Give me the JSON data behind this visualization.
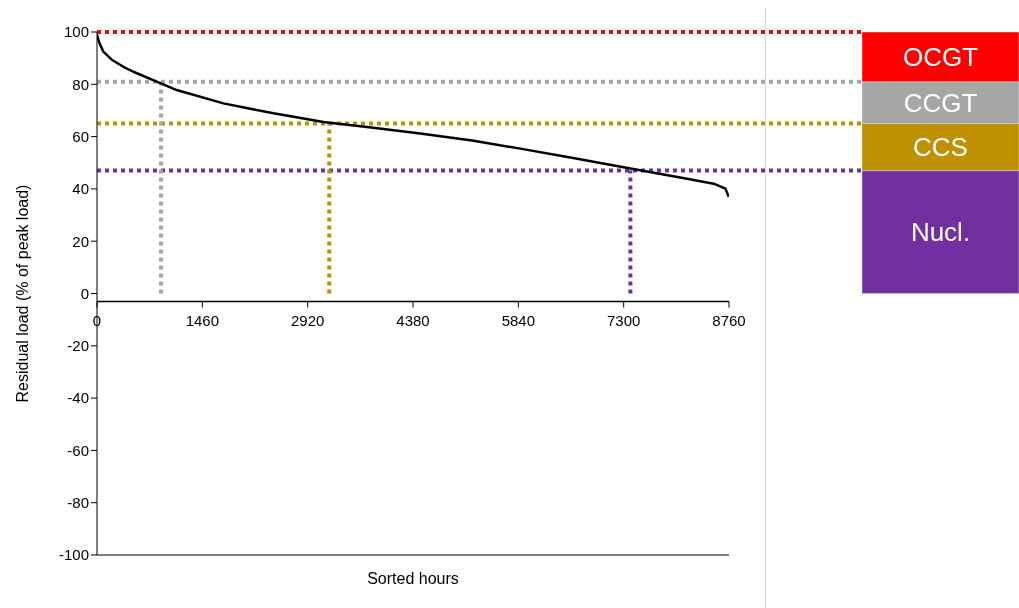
{
  "chart_data": [
    {
      "type": "line",
      "xlabel": "Sorted hours",
      "ylabel": "Residual load (% of peak load)",
      "x": [
        0,
        30,
        88,
        200,
        365,
        504,
        828,
        1105,
        1752,
        2446,
        3140,
        3800,
        4480,
        5200,
        5867,
        6600,
        7393,
        8179,
        8548,
        8710,
        8756
      ],
      "values": [
        99,
        96,
        92.5,
        89.5,
        86.7,
        84.8,
        81,
        77.8,
        72.7,
        68.9,
        65.6,
        63.5,
        61.2,
        58.5,
        55.4,
        51.8,
        47.8,
        43.9,
        42,
        40.1,
        37
      ],
      "color": "#000000",
      "xlim": [
        0,
        8760
      ],
      "xticks": [
        0,
        1460,
        2920,
        4380,
        5840,
        7300,
        8760
      ],
      "ylim": [
        -100,
        100
      ],
      "yticks": [
        -100,
        -80,
        -60,
        -40,
        -20,
        0,
        20,
        40,
        60,
        80,
        100
      ],
      "grid": false,
      "legend": false,
      "marker": "none",
      "line_style": "solid",
      "ref_lines": [
        {
          "axis": "y",
          "value": 100,
          "color": "#ff0000",
          "line_style": "dotted"
        },
        {
          "axis": "y",
          "value": 81,
          "color": "#a6a6a6",
          "line_style": "dotted"
        },
        {
          "axis": "y",
          "value": 65,
          "color": "#bf9000",
          "line_style": "dotted"
        },
        {
          "axis": "y",
          "value": 47,
          "color": "#7030a0",
          "line_style": "dotted"
        },
        {
          "axis": "x",
          "value": 888,
          "color": "#a6a6a6",
          "line_style": "dotted"
        },
        {
          "axis": "x",
          "value": 3220,
          "color": "#bf9000",
          "line_style": "dotted"
        },
        {
          "axis": "x",
          "value": 7393,
          "color": "#7030a0",
          "line_style": "dotted"
        }
      ]
    },
    {
      "type": "bar",
      "stacked": true,
      "categories": [
        null
      ],
      "ylim": [
        -100,
        100
      ],
      "legend": false,
      "series": [
        {
          "name": "Nucl.",
          "color": "#7030a0",
          "values": [
            47
          ]
        },
        {
          "name": "CCS",
          "color": "#bf9000",
          "values": [
            18
          ]
        },
        {
          "name": "CCGT",
          "color": "#a6a6a6",
          "values": [
            16
          ]
        },
        {
          "name": "OCGT",
          "color": "#ff0000",
          "values": [
            19
          ]
        }
      ]
    }
  ]
}
